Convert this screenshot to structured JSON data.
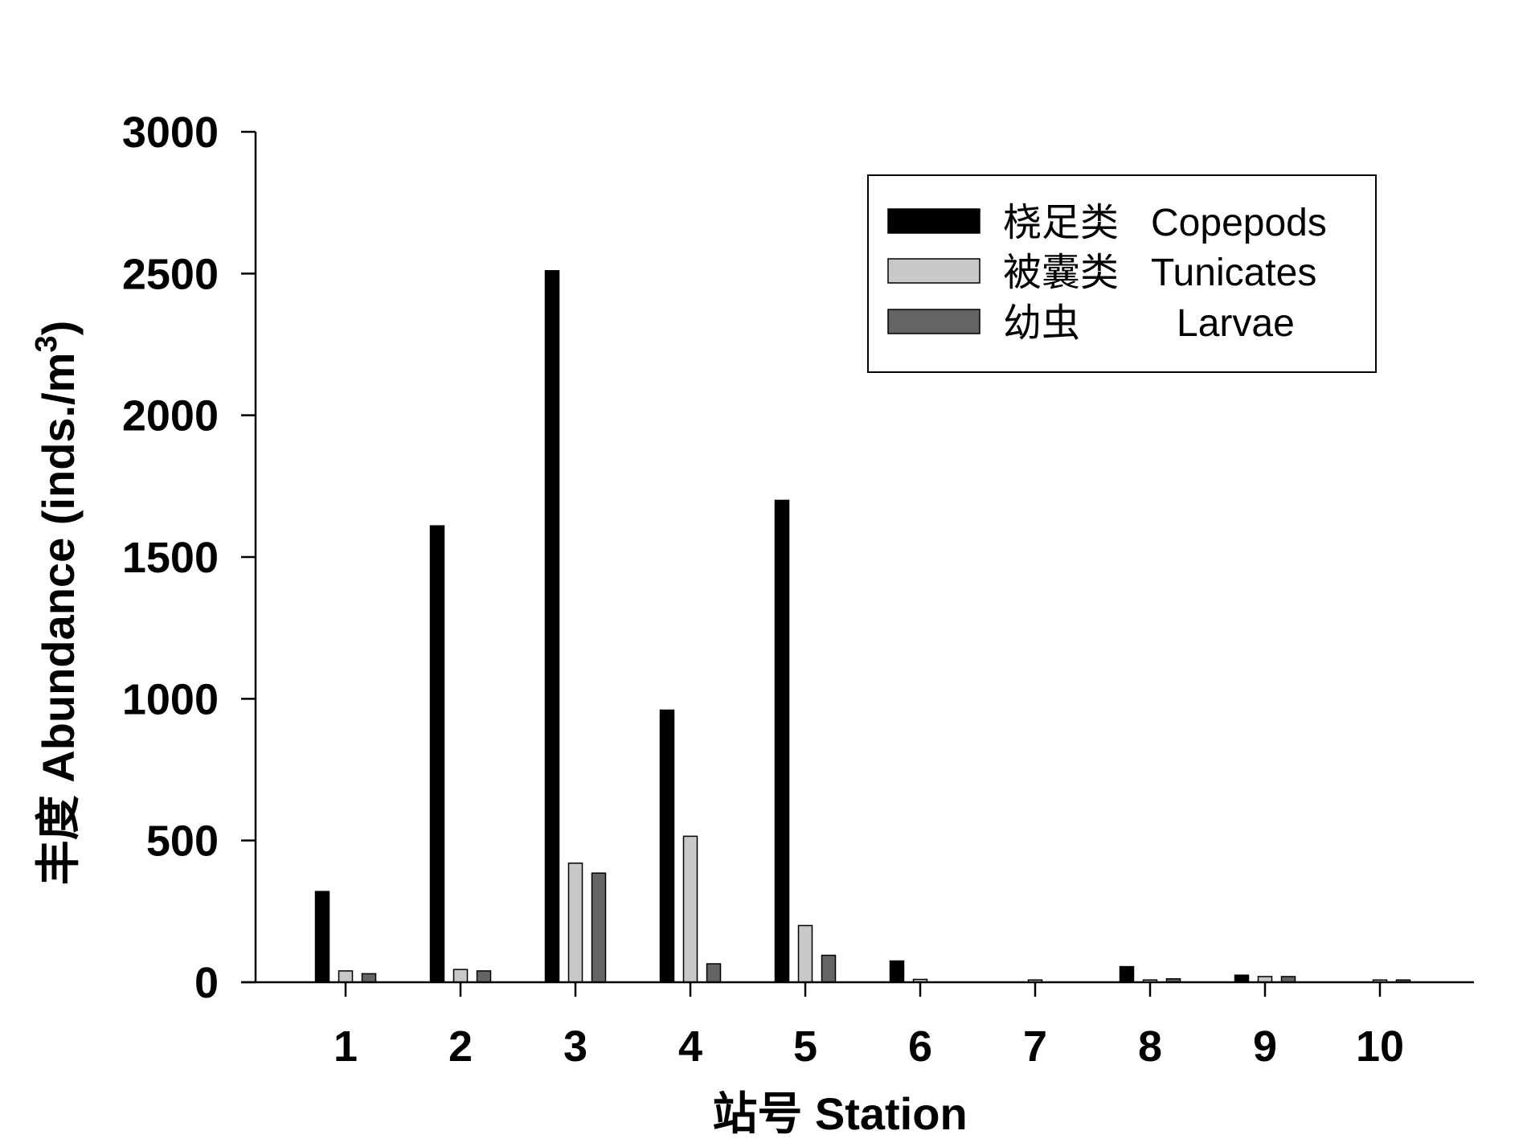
{
  "chart_data": {
    "type": "bar",
    "title": "",
    "xlabel": "站号  Station",
    "ylabel_main": "丰度   Abundance (inds./m",
    "ylabel_sup": "3",
    "ylabel_close": ")",
    "ylim": [
      0,
      3000
    ],
    "yticks": [
      "0",
      "500",
      "1000",
      "1500",
      "2000",
      "2500",
      "3000"
    ],
    "ytick_values": [
      0,
      500,
      1000,
      1500,
      2000,
      2500,
      3000
    ],
    "categories": [
      "1",
      "2",
      "3",
      "4",
      "5",
      "6",
      "7",
      "8",
      "9",
      "10"
    ],
    "grid": false,
    "legend_position": "top-right",
    "series": [
      {
        "name": "桡足类   Copepods",
        "color": "#000000",
        "values": [
          320,
          1610,
          2510,
          960,
          1700,
          75,
          0,
          55,
          25,
          0
        ]
      },
      {
        "name": "被囊类   Tunicates",
        "color": "#c8c8c8",
        "values": [
          40,
          45,
          420,
          515,
          200,
          10,
          8,
          8,
          20,
          8
        ]
      },
      {
        "name": "幼虫         Larvae",
        "color": "#646464",
        "values": [
          30,
          40,
          385,
          65,
          95,
          0,
          0,
          12,
          20,
          8
        ]
      }
    ]
  }
}
